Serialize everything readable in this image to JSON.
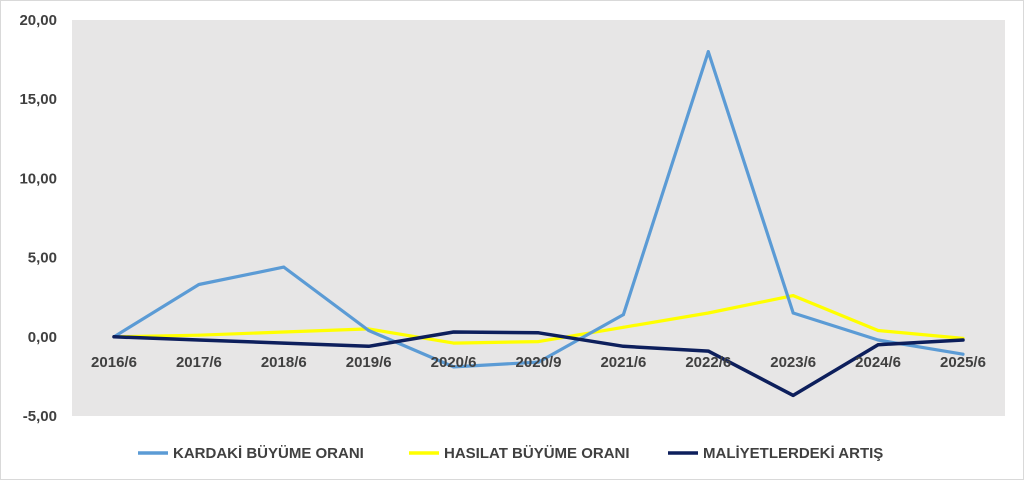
{
  "chart_data": {
    "type": "line",
    "categories": [
      "2016/6",
      "2017/6",
      "2018/6",
      "2019/6",
      "2020/6",
      "2020/9",
      "2021/6",
      "2022/6",
      "2023/6",
      "2024/6",
      "2025/6"
    ],
    "series": [
      {
        "name": "KARDAKİ BÜYÜME ORANI",
        "color": "#5B9BD5",
        "values": [
          0.0,
          3.3,
          4.4,
          0.4,
          -1.9,
          -1.6,
          1.4,
          18.0,
          1.5,
          -0.2,
          -1.1
        ]
      },
      {
        "name": "HASILAT BÜYÜME ORANI",
        "color": "#FFFF00",
        "values": [
          0.0,
          0.1,
          0.3,
          0.5,
          -0.4,
          -0.3,
          0.6,
          1.5,
          2.6,
          0.4,
          -0.1
        ]
      },
      {
        "name": "MALİYETLERDEKİ ARTIŞ",
        "color": "#0D1F5C",
        "values": [
          0.0,
          -0.2,
          -0.4,
          -0.6,
          0.3,
          0.25,
          -0.6,
          -0.9,
          -3.7,
          -0.5,
          -0.2
        ]
      }
    ],
    "y_ticks": [
      "20,00",
      "15,00",
      "10,00",
      "5,00",
      "0,00",
      "-5,00"
    ],
    "ylim": [
      -5,
      20
    ],
    "y_step": 5,
    "plot_background": "#E7E6E6",
    "legend_position": "bottom",
    "grid": false
  }
}
